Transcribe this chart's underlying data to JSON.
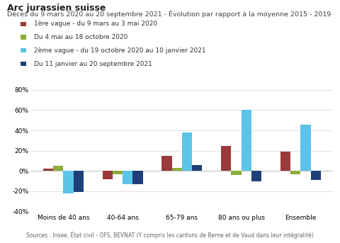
{
  "title": "Arc jurassien suisse",
  "subtitle": "Décès du 9 mars 2020 au 20 septembre 2021 - Évolution par rapport à la moyenne 2015 - 2019",
  "categories": [
    "Moins de 40 ans",
    "40-64 ans",
    "65-79 ans",
    "80 ans ou plus",
    "Ensemble"
  ],
  "series": {
    "vague1": {
      "label": "1ère vague - du 9 mars au 3 mai 2020",
      "color": "#9b3a3a",
      "values": [
        2,
        -8,
        15,
        25,
        19
      ]
    },
    "inter": {
      "label": "Du 4 mai au 18 octobre 2020",
      "color": "#8aad3b",
      "values": [
        5,
        -3,
        3,
        -4,
        -3
      ]
    },
    "vague2": {
      "label": "2ème vague - du 19 octobre 2020 au 10 janvier 2021",
      "color": "#5bc4e8",
      "values": [
        -22,
        -13,
        38,
        60,
        46
      ]
    },
    "post": {
      "label": "Du 11 janvier au 20 septembre 2021",
      "color": "#1f3f7a",
      "values": [
        -21,
        -13,
        6,
        -10,
        -9
      ]
    }
  },
  "ylim": [
    -40,
    80
  ],
  "yticks": [
    -40,
    -20,
    0,
    20,
    40,
    60,
    80
  ],
  "source": "Sources : Insee, État civil - OFS, BEVNAT (Y compris les cantons de Berne et de Vaud dans leur intégralité)",
  "background_color": "#ffffff",
  "bar_width": 0.17,
  "title_fontsize": 9,
  "subtitle_fontsize": 6.8,
  "legend_fontsize": 6.5,
  "axis_fontsize": 6.5,
  "source_fontsize": 5.5
}
